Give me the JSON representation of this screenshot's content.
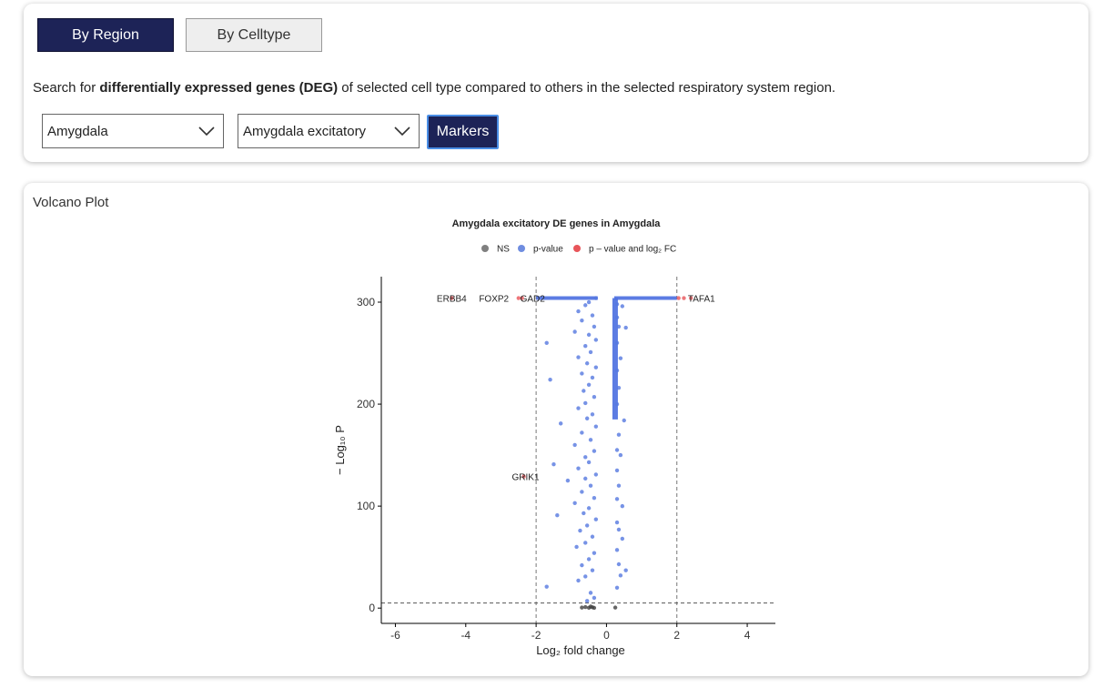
{
  "tabs": {
    "by_region": "By Region",
    "by_celltype": "By Celltype"
  },
  "description": {
    "prefix": "Search for ",
    "bold": "differentially expressed genes (DEG)",
    "suffix": " of selected cell type compared to others in the selected respiratory system region."
  },
  "filters": {
    "region_value": "Amygdala",
    "celltype_value": "Amygdala excitatory",
    "markers_label": "Markers"
  },
  "plot_panel": {
    "heading": "Volcano Plot"
  },
  "chart_data": {
    "type": "scatter",
    "title": "Amygdala excitatory DE genes in Amygdala",
    "xlabel": "Log₂ fold change",
    "ylabel": "− Log₁₀ P",
    "xlim": [
      -6.4,
      4.8
    ],
    "ylim": [
      -15,
      325
    ],
    "x_ticks": [
      -6,
      -4,
      -2,
      0,
      2,
      4
    ],
    "y_ticks": [
      0,
      100,
      200,
      300
    ],
    "fc_threshold": 2,
    "p_threshold": 5,
    "legend": {
      "position": "top",
      "entries": [
        {
          "label": "NS",
          "color": "#808080"
        },
        {
          "label": "p-value",
          "color": "#6f8de0"
        },
        {
          "label": "p – value and log₂ FC",
          "color": "#e8555a"
        }
      ]
    },
    "series": [
      {
        "name": "NS",
        "points": [
          [
            -0.7,
            0.5
          ],
          [
            -0.6,
            1
          ],
          [
            -0.5,
            0.3
          ],
          [
            -0.45,
            1.5
          ],
          [
            -0.4,
            0.8
          ],
          [
            -0.35,
            0.2
          ],
          [
            0.25,
            0.5
          ]
        ]
      },
      {
        "name": "p-value",
        "points": [
          [
            -0.3,
            304
          ],
          [
            -0.5,
            300
          ],
          [
            -0.6,
            297
          ],
          [
            -0.8,
            291
          ],
          [
            -0.4,
            287
          ],
          [
            -0.7,
            282
          ],
          [
            -0.35,
            276
          ],
          [
            -0.9,
            271
          ],
          [
            -0.5,
            268
          ],
          [
            -1.7,
            260
          ],
          [
            -0.3,
            263
          ],
          [
            -0.6,
            257
          ],
          [
            -0.45,
            251
          ],
          [
            -0.8,
            246
          ],
          [
            -0.55,
            240
          ],
          [
            -0.3,
            236
          ],
          [
            -0.7,
            230
          ],
          [
            -1.6,
            224
          ],
          [
            -0.4,
            226
          ],
          [
            -0.5,
            219
          ],
          [
            -0.65,
            213
          ],
          [
            -0.35,
            207
          ],
          [
            -0.6,
            201
          ],
          [
            -0.8,
            196
          ],
          [
            -0.4,
            190
          ],
          [
            -0.55,
            186
          ],
          [
            -1.3,
            181
          ],
          [
            -0.3,
            178
          ],
          [
            -0.7,
            172
          ],
          [
            -0.45,
            165
          ],
          [
            -0.9,
            160
          ],
          [
            -0.35,
            154
          ],
          [
            -0.6,
            148
          ],
          [
            -1.5,
            141
          ],
          [
            -0.5,
            143
          ],
          [
            -0.8,
            137
          ],
          [
            -0.3,
            131
          ],
          [
            -1.1,
            125
          ],
          [
            -0.6,
            127
          ],
          [
            -0.45,
            120
          ],
          [
            -0.7,
            114
          ],
          [
            -0.35,
            108
          ],
          [
            -0.9,
            103
          ],
          [
            -0.5,
            98
          ],
          [
            -0.65,
            93
          ],
          [
            -1.4,
            91
          ],
          [
            -0.3,
            87
          ],
          [
            -0.55,
            81
          ],
          [
            -0.75,
            76
          ],
          [
            -0.4,
            70
          ],
          [
            -0.6,
            64
          ],
          [
            -0.85,
            60
          ],
          [
            -0.35,
            54
          ],
          [
            -0.5,
            48
          ],
          [
            -0.7,
            42
          ],
          [
            -0.4,
            37
          ],
          [
            -0.6,
            31
          ],
          [
            -0.8,
            27
          ],
          [
            -1.7,
            21
          ],
          [
            -0.45,
            15
          ],
          [
            -0.35,
            10
          ],
          [
            -0.55,
            7
          ],
          [
            0.3,
            298
          ],
          [
            0.45,
            296
          ],
          [
            0.3,
            285
          ],
          [
            0.35,
            276
          ],
          [
            0.55,
            275
          ],
          [
            0.3,
            260
          ],
          [
            0.4,
            245
          ],
          [
            0.3,
            233
          ],
          [
            0.35,
            216
          ],
          [
            0.3,
            200
          ],
          [
            0.5,
            184
          ],
          [
            0.35,
            170
          ],
          [
            0.3,
            155
          ],
          [
            0.4,
            150
          ],
          [
            0.3,
            135
          ],
          [
            0.35,
            120
          ],
          [
            0.3,
            107
          ],
          [
            0.45,
            100
          ],
          [
            0.3,
            84
          ],
          [
            0.35,
            77
          ],
          [
            0.45,
            68
          ],
          [
            0.3,
            57
          ],
          [
            0.35,
            43
          ],
          [
            0.55,
            37
          ],
          [
            0.4,
            32
          ],
          [
            0.3,
            20
          ]
        ]
      },
      {
        "name": "p – value and log₂ FC",
        "points": [
          [
            -4.4,
            304
          ],
          [
            -2.5,
            304
          ],
          [
            -2.4,
            304
          ],
          [
            2.05,
            304
          ],
          [
            2.2,
            304
          ],
          [
            2.4,
            304
          ],
          [
            -2.35,
            129
          ]
        ]
      }
    ],
    "left_band": {
      "x_from": -2.0,
      "x_to": -0.25,
      "y": 304
    },
    "right_vertical": {
      "x": 0.22,
      "y_from": 185,
      "y_to": 304
    },
    "right_band": {
      "x_from": 0.22,
      "x_to": 2.0,
      "y": 304
    },
    "gene_labels": [
      {
        "text": "ERBB4",
        "x": -4.4,
        "y": 304
      },
      {
        "text": "FOXP2",
        "x": -3.2,
        "y": 304
      },
      {
        "text": "GAD2",
        "x": -2.1,
        "y": 304
      },
      {
        "text": "TAFA1",
        "x": 2.7,
        "y": 304
      },
      {
        "text": "GRIK1",
        "x": -2.3,
        "y": 129
      }
    ]
  }
}
